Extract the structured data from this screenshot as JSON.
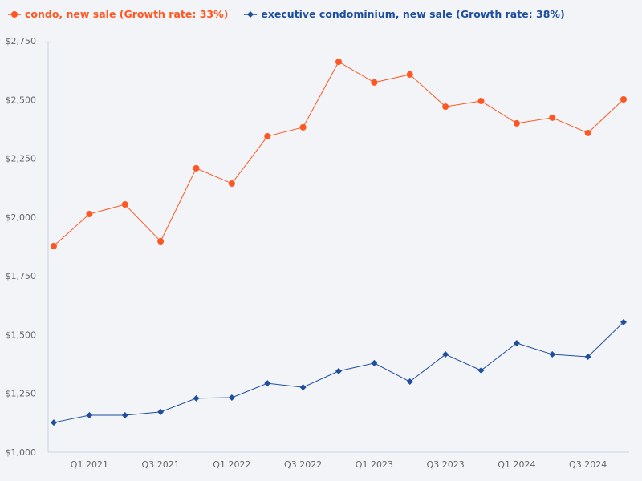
{
  "chart_data": {
    "type": "line",
    "title": "",
    "xlabel": "",
    "ylabel": "",
    "categories": [
      "Q4 2020",
      "Q1 2021",
      "Q2 2021",
      "Q3 2021",
      "Q4 2021",
      "Q1 2022",
      "Q2 2022",
      "Q3 2022",
      "Q4 2022",
      "Q1 2023",
      "Q2 2023",
      "Q3 2023",
      "Q4 2023",
      "Q1 2024",
      "Q2 2024",
      "Q3 2024",
      "Q4 2024"
    ],
    "x_tick_labels": [
      "Q1 2021",
      "Q3 2021",
      "Q1 2022",
      "Q3 2022",
      "Q1 2023",
      "Q3 2023",
      "Q1 2024",
      "Q3 2024"
    ],
    "y_tick_labels": [
      "$1,000",
      "$1,250",
      "$1,500",
      "$1,750",
      "$2,000",
      "$2,250",
      "$2,500",
      "$2,750"
    ],
    "y_ticks": [
      1000,
      1250,
      1500,
      1750,
      2000,
      2250,
      2500,
      2750
    ],
    "ylim": [
      1000,
      2750
    ],
    "grid": false,
    "legend_position": "top-left",
    "series": [
      {
        "name": "condo, new sale (Growth rate: 33%)",
        "color": "#ff5722",
        "marker": "circle",
        "values": [
          1877,
          2013,
          2054,
          1897,
          2208,
          2143,
          2344,
          2382,
          2661,
          2573,
          2607,
          2470,
          2494,
          2399,
          2423,
          2358,
          2501
        ]
      },
      {
        "name": "executive condominium, new sale (Growth rate: 38%)",
        "color": "#1f4e9e",
        "marker": "diamond",
        "values": [
          1126,
          1157,
          1157,
          1171,
          1229,
          1232,
          1293,
          1276,
          1345,
          1379,
          1300,
          1416,
          1348,
          1464,
          1416,
          1406,
          1553
        ]
      }
    ]
  }
}
